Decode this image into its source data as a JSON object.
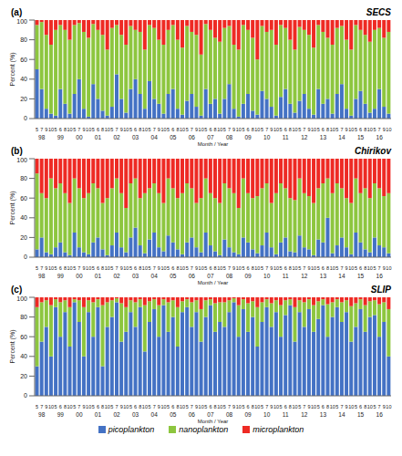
{
  "chart_data": [
    {
      "type": "bar",
      "title": "SECS",
      "annotations": [
        "(a)"
      ],
      "xlabel": "Month / Year",
      "ylabel": "Percent (%)",
      "stacked": true,
      "ylim": [
        0,
        100
      ],
      "yticks": [
        0,
        20,
        40,
        60,
        80,
        100
      ],
      "categories": [
        "5",
        "7",
        "9",
        "10",
        "5",
        "6",
        "8",
        "10",
        "5",
        "7",
        "9",
        "10",
        "5",
        "6",
        "8",
        "10",
        "5",
        "7",
        "9",
        "10",
        "5",
        "6",
        "8",
        "10",
        "5",
        "7",
        "9",
        "10",
        "5",
        "6",
        "8",
        "10",
        "5",
        "7",
        "9",
        "10",
        "5",
        "6",
        "8",
        "10",
        "5",
        "7",
        "9",
        "10",
        "5",
        "6",
        "8",
        "10",
        "5",
        "7",
        "9",
        "10",
        "5",
        "6",
        "8",
        "10",
        "5",
        "7",
        "9",
        "10",
        "5",
        "6",
        "8",
        "10",
        "5",
        "7",
        "9",
        "10",
        "5",
        "6",
        "8",
        "10",
        "5",
        "7",
        "9",
        "10"
      ],
      "year_labels": [
        null,
        "98",
        null,
        null,
        null,
        "99",
        null,
        null,
        null,
        "00",
        null,
        null,
        null,
        "01",
        null,
        null,
        null,
        "02",
        null,
        null,
        null,
        "03",
        null,
        null,
        null,
        "04",
        null,
        null,
        null,
        "05",
        null,
        null,
        null,
        "06",
        null,
        null,
        null,
        "07",
        null,
        null,
        null,
        "08",
        null,
        null,
        null,
        "09",
        null,
        null,
        null,
        "10",
        null,
        null,
        null,
        "11",
        null,
        null,
        null,
        "12",
        null,
        null,
        null,
        "13",
        null,
        null,
        null,
        "14",
        null,
        null,
        null,
        "15",
        null,
        null,
        null,
        "16",
        null,
        null
      ],
      "series": [
        {
          "name": "picoplankton",
          "color": "#4472c4",
          "values": [
            50,
            30,
            10,
            5,
            3,
            30,
            15,
            5,
            25,
            40,
            10,
            2,
            35,
            20,
            8,
            3,
            12,
            45,
            20,
            6,
            30,
            40,
            25,
            10,
            38,
            20,
            15,
            5,
            25,
            30,
            10,
            4,
            18,
            25,
            12,
            3,
            30,
            15,
            20,
            5,
            20,
            35,
            10,
            2,
            15,
            25,
            8,
            4,
            28,
            20,
            12,
            3,
            22,
            30,
            15,
            6,
            18,
            25,
            10,
            4,
            30,
            15,
            20,
            5,
            25,
            35,
            10,
            3,
            20,
            28,
            15,
            6,
            10,
            30,
            12,
            5
          ]
        },
        {
          "name": "nanoplankton",
          "color": "#8dc63f",
          "values": [
            45,
            68,
            75,
            70,
            87,
            65,
            75,
            75,
            70,
            57,
            78,
            80,
            61,
            70,
            77,
            67,
            80,
            50,
            65,
            69,
            64,
            50,
            63,
            60,
            57,
            72,
            65,
            70,
            65,
            65,
            70,
            68,
            76,
            63,
            73,
            62,
            66,
            75,
            62,
            73,
            72,
            59,
            65,
            68,
            80,
            65,
            74,
            56,
            66,
            68,
            78,
            72,
            73,
            62,
            65,
            64,
            75,
            65,
            75,
            68,
            65,
            73,
            62,
            70,
            67,
            59,
            70,
            67,
            75,
            62,
            70,
            72,
            80,
            62,
            70,
            83
          ]
        },
        {
          "name": "microplankton",
          "color": "#ee2a24",
          "values": [
            5,
            2,
            15,
            25,
            10,
            5,
            10,
            20,
            5,
            3,
            12,
            18,
            4,
            10,
            15,
            30,
            8,
            5,
            15,
            25,
            6,
            10,
            12,
            30,
            5,
            8,
            20,
            25,
            10,
            5,
            20,
            28,
            6,
            12,
            15,
            35,
            4,
            10,
            18,
            22,
            8,
            6,
            25,
            30,
            5,
            10,
            18,
            40,
            6,
            12,
            10,
            25,
            5,
            8,
            20,
            30,
            7,
            10,
            15,
            28,
            5,
            12,
            18,
            25,
            8,
            6,
            20,
            30,
            5,
            10,
            15,
            22,
            10,
            8,
            18,
            12
          ]
        }
      ]
    },
    {
      "type": "bar",
      "title": "Chirikov",
      "annotations": [
        "(b)"
      ],
      "xlabel": "Month / Year",
      "ylabel": "Percent (%)",
      "stacked": true,
      "ylim": [
        0,
        100
      ],
      "yticks": [
        0,
        20,
        40,
        60,
        80,
        100
      ],
      "categories": [
        "5",
        "7",
        "9",
        "10",
        "5",
        "6",
        "8",
        "10",
        "5",
        "7",
        "9",
        "10",
        "5",
        "6",
        "8",
        "10",
        "5",
        "7",
        "9",
        "10",
        "5",
        "6",
        "8",
        "10",
        "5",
        "7",
        "9",
        "10",
        "5",
        "6",
        "8",
        "10",
        "5",
        "7",
        "9",
        "10",
        "5",
        "6",
        "8",
        "10",
        "5",
        "7",
        "9",
        "10",
        "5",
        "6",
        "8",
        "10",
        "5",
        "7",
        "9",
        "10",
        "5",
        "6",
        "8",
        "10",
        "5",
        "7",
        "9",
        "10",
        "5",
        "6",
        "8",
        "10",
        "5",
        "7",
        "9",
        "10",
        "5",
        "6",
        "8",
        "10",
        "5",
        "7",
        "9",
        "10"
      ],
      "year_labels": [
        null,
        "98",
        null,
        null,
        null,
        "99",
        null,
        null,
        null,
        "00",
        null,
        null,
        null,
        "01",
        null,
        null,
        null,
        "02",
        null,
        null,
        null,
        "03",
        null,
        null,
        null,
        "04",
        null,
        null,
        null,
        "05",
        null,
        null,
        null,
        "06",
        null,
        null,
        null,
        "07",
        null,
        null,
        null,
        "08",
        null,
        null,
        null,
        "09",
        null,
        null,
        null,
        "10",
        null,
        null,
        null,
        "11",
        null,
        null,
        null,
        "12",
        null,
        null,
        null,
        "13",
        null,
        null,
        null,
        "14",
        null,
        null,
        null,
        "15",
        null,
        null,
        null,
        "16",
        null,
        null
      ],
      "series": [
        {
          "name": "picoplankton",
          "color": "#4472c4",
          "values": [
            8,
            20,
            5,
            3,
            10,
            15,
            5,
            2,
            25,
            10,
            5,
            3,
            15,
            20,
            8,
            2,
            12,
            25,
            10,
            5,
            20,
            30,
            12,
            4,
            18,
            25,
            10,
            6,
            22,
            15,
            8,
            3,
            15,
            20,
            10,
            5,
            25,
            12,
            6,
            2,
            18,
            10,
            5,
            3,
            20,
            15,
            8,
            4,
            12,
            25,
            10,
            3,
            15,
            20,
            6,
            5,
            22,
            10,
            8,
            2,
            18,
            15,
            40,
            4,
            12,
            20,
            10,
            3,
            25,
            15,
            8,
            5,
            20,
            12,
            10,
            4
          ]
        },
        {
          "name": "nanoplankton",
          "color": "#8dc63f",
          "values": [
            77,
            45,
            55,
            77,
            60,
            60,
            60,
            53,
            55,
            60,
            55,
            62,
            60,
            50,
            47,
            58,
            58,
            55,
            55,
            45,
            55,
            50,
            48,
            61,
            52,
            50,
            55,
            49,
            58,
            55,
            52,
            62,
            60,
            50,
            45,
            55,
            55,
            53,
            54,
            53,
            57,
            60,
            60,
            47,
            60,
            50,
            52,
            58,
            58,
            50,
            45,
            62,
            60,
            50,
            54,
            53,
            58,
            55,
            54,
            53,
            52,
            60,
            40,
            61,
            63,
            50,
            50,
            52,
            55,
            50,
            62,
            55,
            55,
            58,
            52,
            61
          ]
        },
        {
          "name": "microplankton",
          "color": "#ee2a24",
          "values": [
            15,
            35,
            40,
            20,
            30,
            25,
            35,
            45,
            20,
            30,
            40,
            35,
            25,
            30,
            45,
            40,
            30,
            20,
            35,
            50,
            25,
            20,
            40,
            35,
            30,
            25,
            35,
            45,
            20,
            30,
            40,
            35,
            25,
            30,
            45,
            40,
            20,
            35,
            40,
            45,
            25,
            30,
            35,
            50,
            20,
            35,
            40,
            38,
            30,
            25,
            45,
            35,
            25,
            30,
            40,
            42,
            20,
            35,
            38,
            45,
            30,
            25,
            20,
            35,
            25,
            30,
            40,
            45,
            20,
            35,
            30,
            40,
            25,
            30,
            38,
            35
          ]
        }
      ]
    },
    {
      "type": "bar",
      "title": "SLIP",
      "annotations": [
        "(c)"
      ],
      "xlabel": "Month / Year",
      "ylabel": "Percent (%)",
      "stacked": true,
      "legend": "bottom",
      "ylim": [
        0,
        100
      ],
      "yticks": [
        0,
        20,
        40,
        60,
        80,
        100
      ],
      "categories": [
        "5",
        "7",
        "9",
        "10",
        "5",
        "6",
        "8",
        "10",
        "5",
        "7",
        "9",
        "10",
        "5",
        "6",
        "8",
        "10",
        "5",
        "7",
        "9",
        "10",
        "5",
        "6",
        "8",
        "10",
        "5",
        "7",
        "9",
        "10",
        "5",
        "6",
        "8",
        "10",
        "5",
        "7",
        "9",
        "10",
        "5",
        "6",
        "8",
        "10",
        "5",
        "7",
        "9",
        "10",
        "5",
        "6",
        "8",
        "10",
        "5",
        "7",
        "9",
        "10",
        "5",
        "6",
        "8",
        "10",
        "5",
        "7",
        "9",
        "10",
        "5",
        "6",
        "8",
        "10",
        "5",
        "7",
        "9",
        "10",
        "5",
        "6",
        "8",
        "10",
        "5",
        "7",
        "9",
        "10"
      ],
      "year_labels": [
        null,
        "98",
        null,
        null,
        null,
        "99",
        null,
        null,
        null,
        "00",
        null,
        null,
        null,
        "01",
        null,
        null,
        null,
        "02",
        null,
        null,
        null,
        "03",
        null,
        null,
        null,
        "04",
        null,
        null,
        null,
        "05",
        null,
        null,
        null,
        "06",
        null,
        null,
        null,
        "07",
        null,
        null,
        null,
        "08",
        null,
        null,
        null,
        "09",
        null,
        null,
        null,
        "10",
        null,
        null,
        null,
        "11",
        null,
        null,
        null,
        "12",
        null,
        null,
        null,
        "13",
        null,
        null,
        null,
        "14",
        null,
        null,
        null,
        "15",
        null,
        null,
        null,
        "16",
        null,
        null
      ],
      "series": [
        {
          "name": "picoplankton",
          "color": "#4472c4",
          "values": [
            30,
            55,
            70,
            40,
            90,
            60,
            85,
            50,
            95,
            75,
            40,
            85,
            60,
            90,
            30,
            70,
            80,
            95,
            55,
            65,
            85,
            70,
            90,
            45,
            75,
            88,
            60,
            92,
            65,
            80,
            50,
            85,
            90,
            70,
            85,
            55,
            80,
            92,
            65,
            75,
            70,
            85,
            95,
            60,
            88,
            65,
            80,
            50,
            75,
            90,
            70,
            85,
            60,
            82,
            92,
            55,
            85,
            70,
            88,
            65,
            78,
            92,
            60,
            80,
            90,
            75,
            85,
            55,
            70,
            88,
            65,
            80,
            82,
            60,
            75,
            40
          ]
        },
        {
          "name": "nanoplankton",
          "color": "#8dc63f",
          "values": [
            60,
            40,
            27,
            52,
            8,
            35,
            12,
            40,
            3,
            22,
            50,
            12,
            35,
            8,
            62,
            25,
            17,
            4,
            39,
            25,
            12,
            25,
            8,
            47,
            21,
            10,
            32,
            6,
            30,
            17,
            40,
            11,
            8,
            25,
            12,
            33,
            17,
            6,
            29,
            20,
            25,
            12,
            4,
            32,
            10,
            29,
            16,
            40,
            20,
            8,
            24,
            12,
            32,
            15,
            6,
            35,
            12,
            25,
            10,
            27,
            18,
            6,
            33,
            15,
            8,
            20,
            12,
            36,
            24,
            10,
            27,
            16,
            15,
            33,
            20,
            48
          ]
        },
        {
          "name": "microplankton",
          "color": "#ee2a24",
          "values": [
            10,
            5,
            3,
            8,
            2,
            5,
            3,
            10,
            2,
            3,
            10,
            3,
            5,
            2,
            8,
            5,
            3,
            1,
            6,
            10,
            3,
            5,
            2,
            8,
            4,
            2,
            8,
            2,
            5,
            3,
            10,
            4,
            2,
            5,
            3,
            12,
            3,
            2,
            6,
            5,
            5,
            3,
            1,
            8,
            2,
            6,
            4,
            10,
            5,
            2,
            6,
            3,
            8,
            3,
            2,
            10,
            3,
            5,
            2,
            8,
            4,
            2,
            7,
            5,
            2,
            5,
            3,
            9,
            6,
            2,
            8,
            4,
            3,
            7,
            5,
            12
          ]
        }
      ]
    }
  ]
}
